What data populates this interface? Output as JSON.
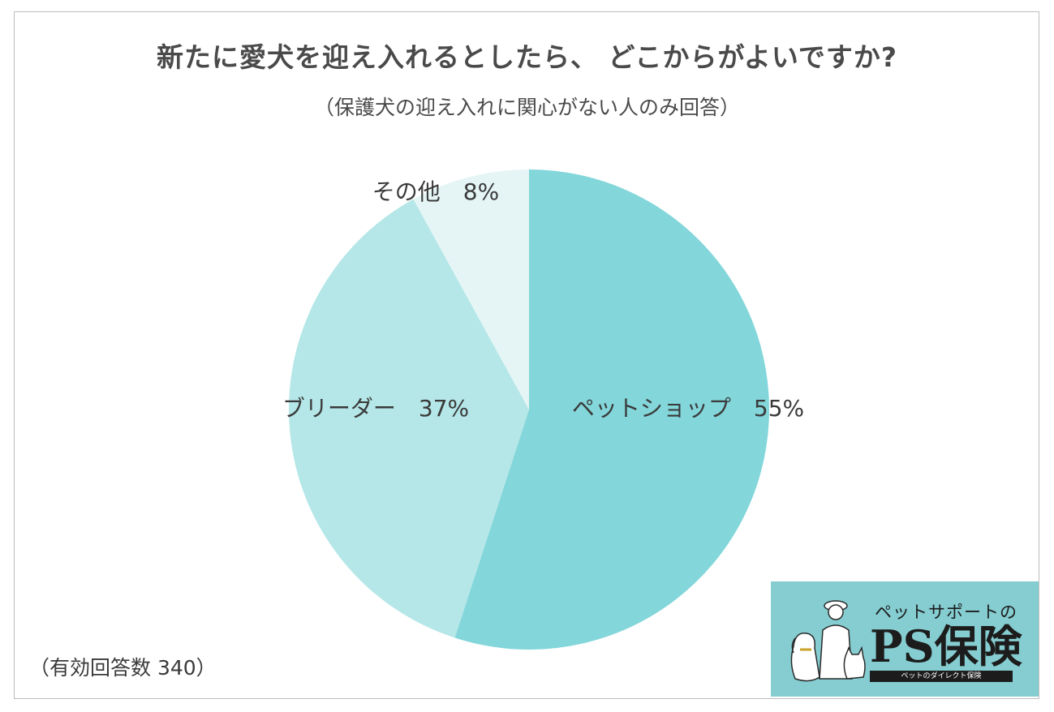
{
  "title": "新たに愛犬を迎え入れるとしたら、 どこからがよいですか?",
  "subtitle": "（保護犬の迎え入れに関心がない人のみ回答）",
  "note": "（有効回答数 340）",
  "logo": {
    "tagline": "ペットサポートの",
    "brand": "PS保険",
    "bar_text": "ペットのダイレクト保険"
  },
  "chart_data": {
    "type": "pie",
    "title": "新たに愛犬を迎え入れるとしたら、 どこからがよいですか?",
    "subtitle": "（保護犬の迎え入れに関心がない人のみ回答）",
    "slices": [
      {
        "name": "ペットショップ",
        "value": 55,
        "label": "ペットショップ　55%",
        "color": "#83d6da"
      },
      {
        "name": "ブリーダー",
        "value": 37,
        "label": "ブリーダー　37%",
        "color": "#b5e7e8"
      },
      {
        "name": "その他",
        "value": 8,
        "label": "その他　8%",
        "color": "#e5f5f5"
      }
    ],
    "start": "12 o'clock",
    "direction": "clockwise"
  }
}
